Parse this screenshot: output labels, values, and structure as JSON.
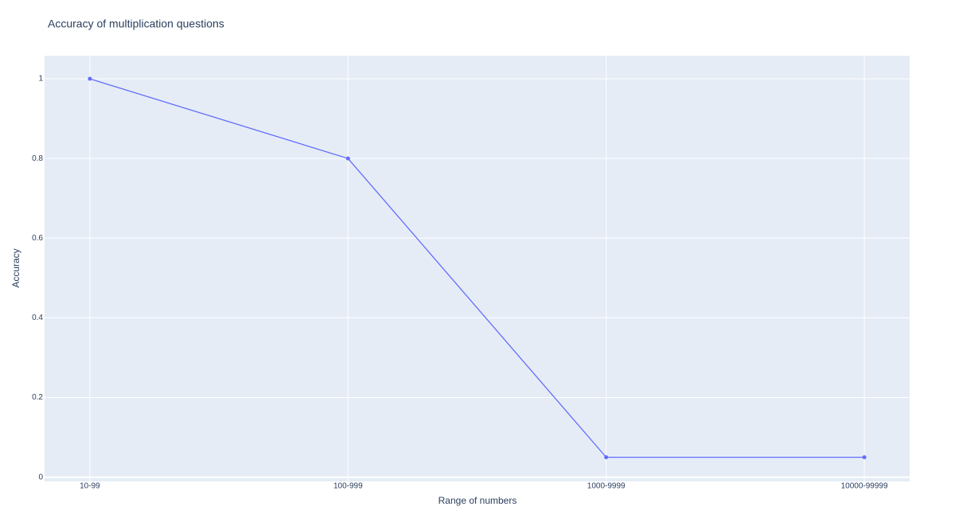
{
  "chart_data": {
    "type": "line",
    "title": "Accuracy of multiplication questions",
    "x_label": "Range of numbers",
    "y_label": "Accuracy",
    "categories": [
      "10-99",
      "100-999",
      "1000-9999",
      "10000-99999"
    ],
    "series": [
      {
        "name": "Accuracy",
        "color": "#636efa",
        "values": [
          1,
          0.8,
          0.05,
          0.05
        ]
      }
    ],
    "ylim": [
      -0.0106,
      1.058
    ],
    "yticks": [
      0,
      0.2,
      0.4,
      0.6,
      0.8,
      1
    ],
    "grid": true
  }
}
